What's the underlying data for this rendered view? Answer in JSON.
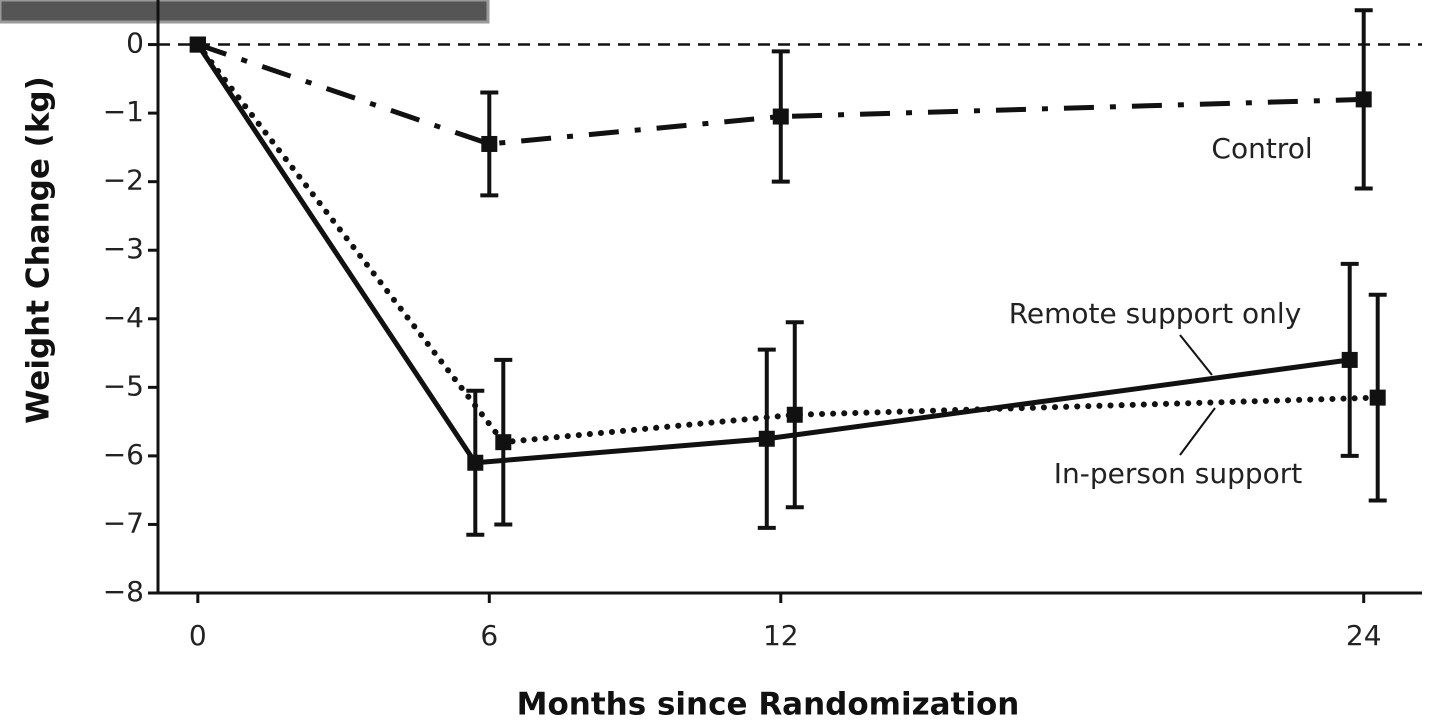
{
  "chart_data": {
    "type": "line",
    "xlabel": "Months since Randomization",
    "ylabel": "Weight Change (kg)",
    "x": [
      0,
      6,
      12,
      24
    ],
    "xlim": [
      -0.82,
      25.2
    ],
    "xticks": [
      0,
      6,
      12,
      24
    ],
    "ylim": [
      -8,
      0.65
    ],
    "yticks": [
      {
        "value": 0,
        "label": "0"
      },
      {
        "value": -1,
        "label": "−1"
      },
      {
        "value": -2,
        "label": "−2"
      },
      {
        "value": -3,
        "label": "−3"
      },
      {
        "value": -4,
        "label": "−4"
      },
      {
        "value": -5,
        "label": "−5"
      },
      {
        "value": -6,
        "label": "−6"
      },
      {
        "value": -7,
        "label": "−7"
      },
      {
        "value": -8,
        "label": "−8"
      }
    ],
    "zero_line": true,
    "series": [
      {
        "name": "Control",
        "color": "#111111",
        "linestyle": "dashdot",
        "values": [
          0,
          -1.45,
          -1.05,
          -0.8
        ],
        "errors": [
          null,
          0.75,
          0.95,
          1.3
        ]
      },
      {
        "name": "Remote support only",
        "color": "#111111",
        "linestyle": "solid",
        "values": [
          0,
          -6.1,
          -5.75,
          -4.6
        ],
        "errors": [
          null,
          1.05,
          1.3,
          1.4
        ]
      },
      {
        "name": "In-person support",
        "color": "#111111",
        "linestyle": "dotted",
        "values": [
          0,
          -5.8,
          -5.4,
          -5.15
        ],
        "errors": [
          null,
          1.2,
          1.35,
          1.5
        ]
      }
    ]
  }
}
